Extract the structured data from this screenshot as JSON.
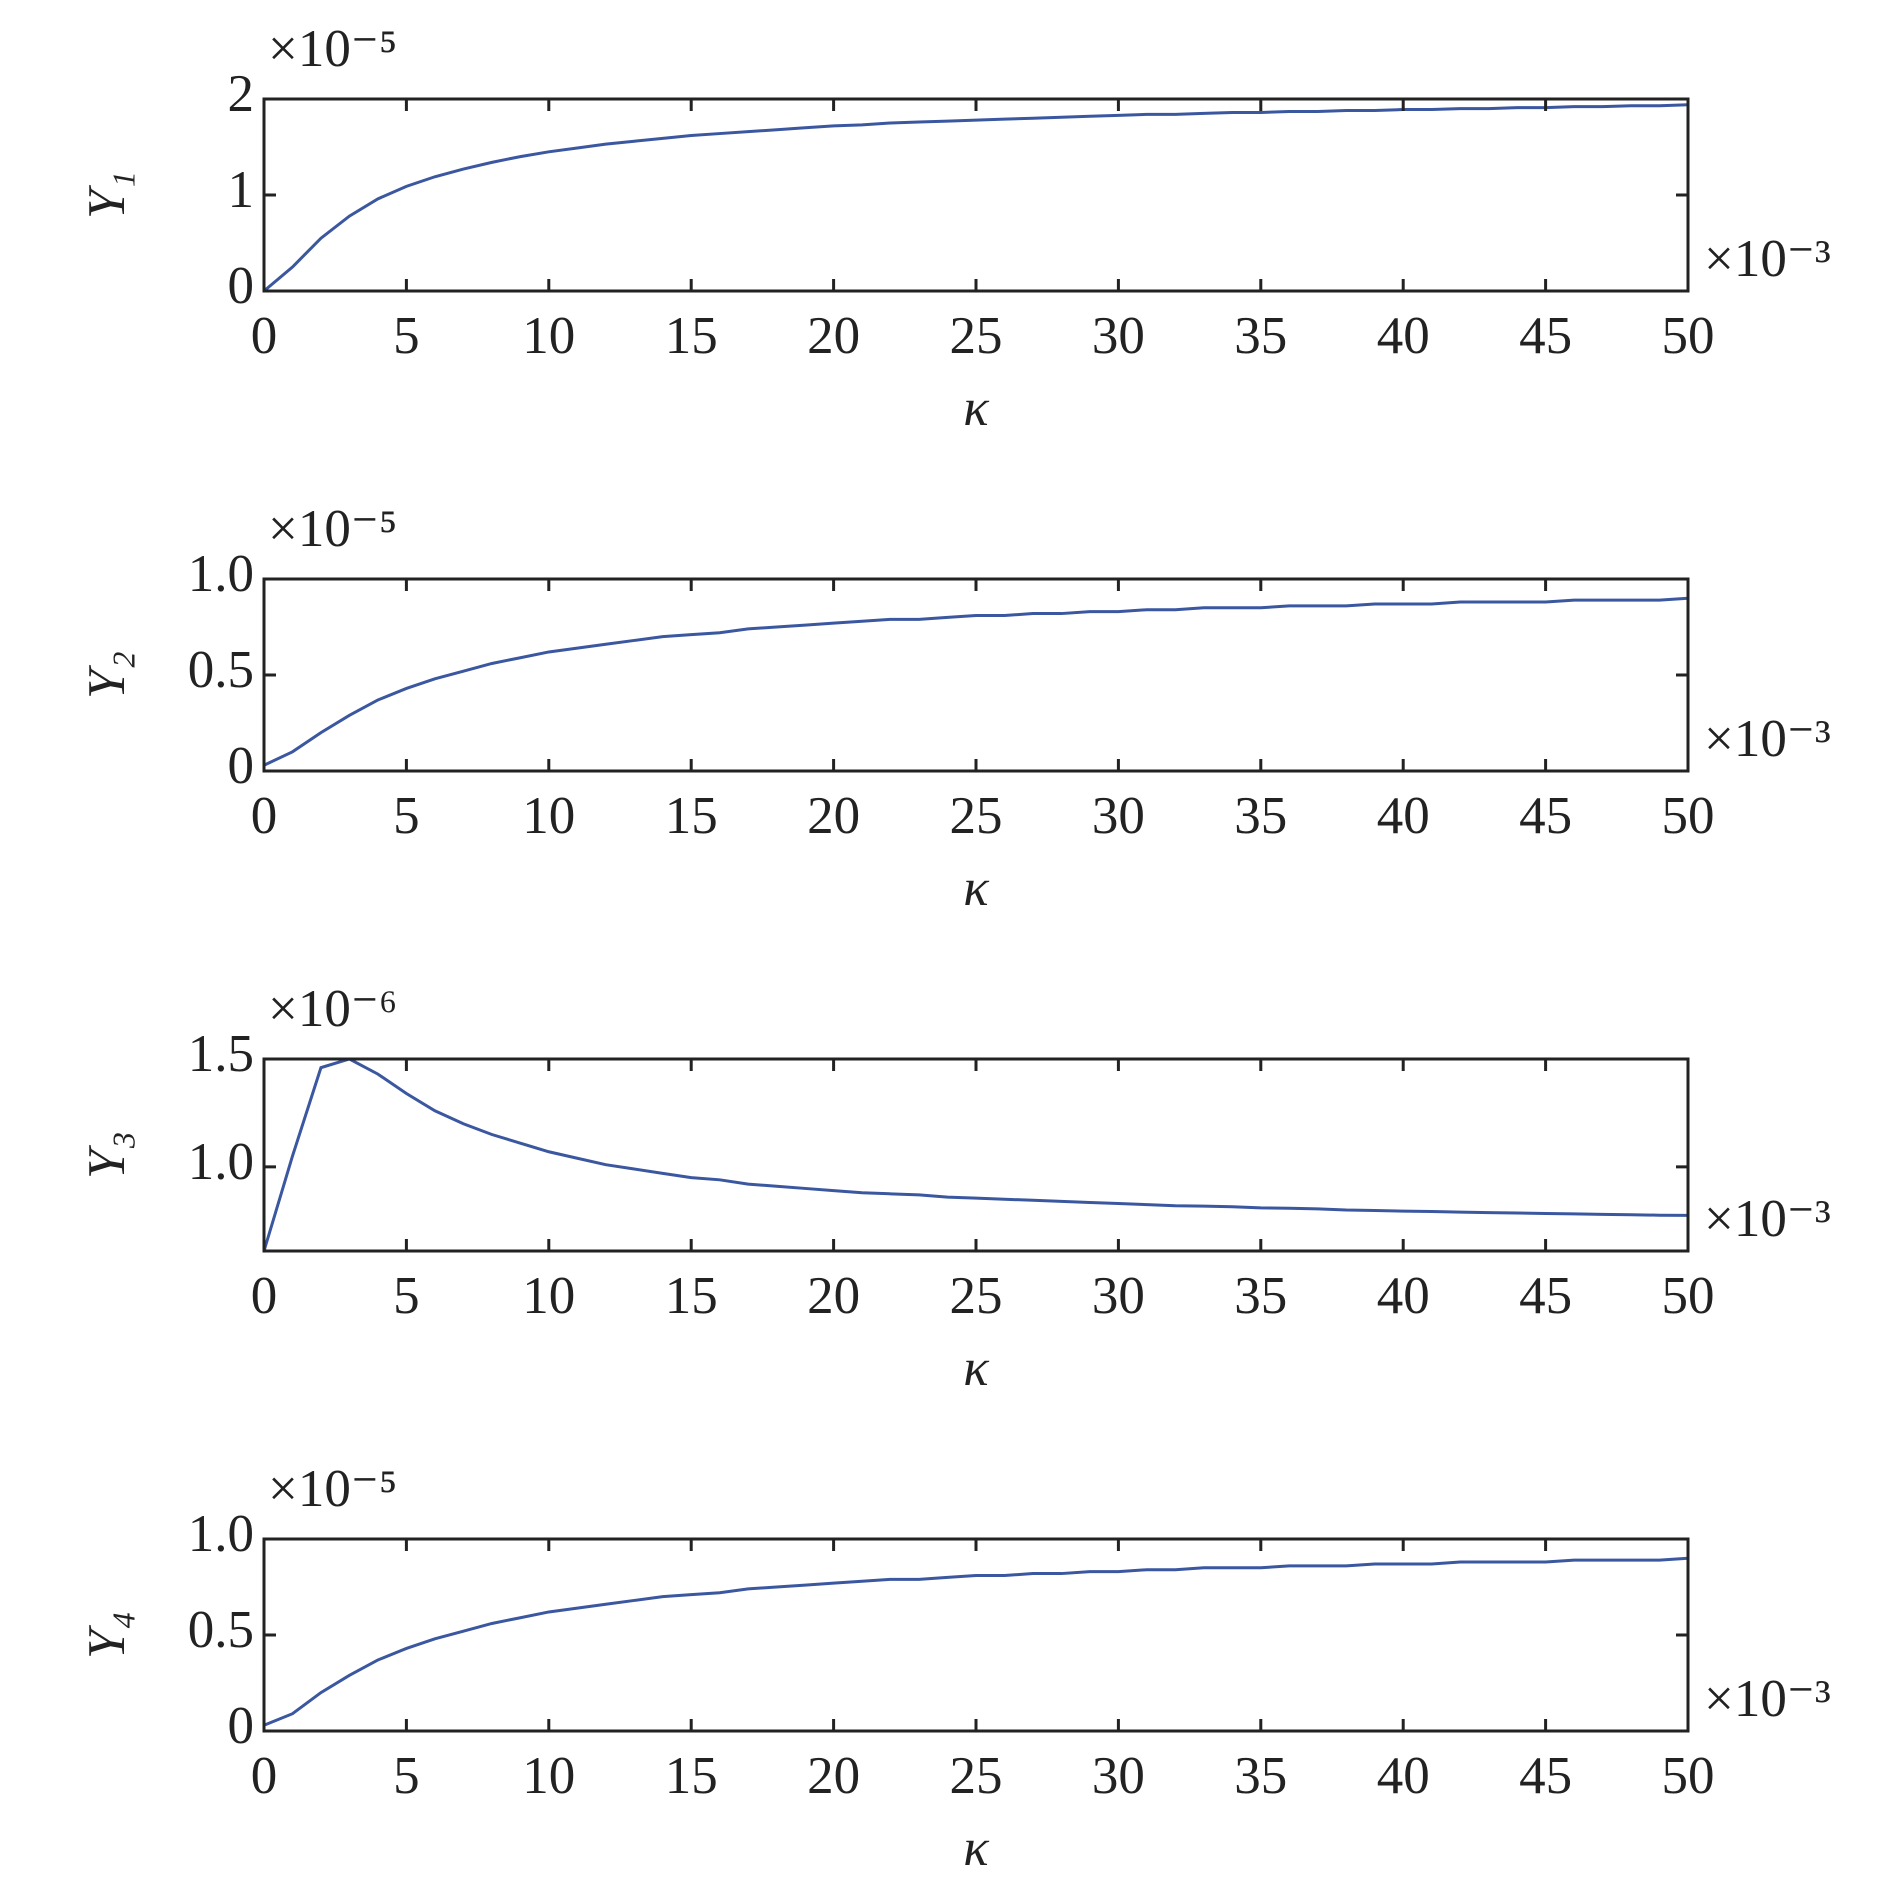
{
  "chart_data": [
    {
      "type": "line",
      "ylabel": "Y₁",
      "xlabel": "κ",
      "y_multiplier": "×10⁻⁵",
      "x_multiplier": "×10⁻³",
      "color": "#3a57a0",
      "x": [
        0,
        1,
        2,
        3,
        4,
        5,
        6,
        7,
        8,
        9,
        10,
        11,
        12,
        13,
        14,
        15,
        16,
        17,
        18,
        19,
        20,
        21,
        22,
        23,
        24,
        25,
        26,
        27,
        28,
        29,
        30,
        31,
        32,
        33,
        34,
        35,
        36,
        37,
        38,
        39,
        40,
        41,
        42,
        43,
        44,
        45,
        46,
        47,
        48,
        49,
        50
      ],
      "values": [
        0,
        0.25,
        0.55,
        0.78,
        0.96,
        1.09,
        1.19,
        1.27,
        1.34,
        1.4,
        1.45,
        1.49,
        1.53,
        1.56,
        1.59,
        1.62,
        1.64,
        1.66,
        1.68,
        1.7,
        1.72,
        1.73,
        1.75,
        1.76,
        1.77,
        1.78,
        1.79,
        1.8,
        1.81,
        1.82,
        1.83,
        1.84,
        1.84,
        1.85,
        1.86,
        1.86,
        1.87,
        1.87,
        1.88,
        1.88,
        1.89,
        1.89,
        1.9,
        1.9,
        1.91,
        1.91,
        1.92,
        1.92,
        1.93,
        1.93,
        1.94
      ],
      "xlim": [
        0,
        50
      ],
      "xticks": [
        0,
        5,
        10,
        15,
        20,
        25,
        30,
        35,
        40,
        45,
        50
      ],
      "ylim": [
        0,
        2
      ],
      "yticks": [
        0,
        1,
        2
      ]
    },
    {
      "type": "line",
      "ylabel": "Y₂",
      "xlabel": "κ",
      "y_multiplier": "×10⁻⁵",
      "x_multiplier": "×10⁻³",
      "color": "#3a57a0",
      "x": [
        0,
        1,
        2,
        3,
        4,
        5,
        6,
        7,
        8,
        9,
        10,
        11,
        12,
        13,
        14,
        15,
        16,
        17,
        18,
        19,
        20,
        21,
        22,
        23,
        24,
        25,
        26,
        27,
        28,
        29,
        30,
        31,
        32,
        33,
        34,
        35,
        36,
        37,
        38,
        39,
        40,
        41,
        42,
        43,
        44,
        45,
        46,
        47,
        48,
        49,
        50
      ],
      "values": [
        0.03,
        0.1,
        0.2,
        0.29,
        0.37,
        0.43,
        0.48,
        0.52,
        0.56,
        0.59,
        0.62,
        0.64,
        0.66,
        0.68,
        0.7,
        0.71,
        0.72,
        0.74,
        0.75,
        0.76,
        0.77,
        0.78,
        0.79,
        0.79,
        0.8,
        0.81,
        0.81,
        0.82,
        0.82,
        0.83,
        0.83,
        0.84,
        0.84,
        0.85,
        0.85,
        0.85,
        0.86,
        0.86,
        0.86,
        0.87,
        0.87,
        0.87,
        0.88,
        0.88,
        0.88,
        0.88,
        0.89,
        0.89,
        0.89,
        0.89,
        0.9
      ],
      "xlim": [
        0,
        50
      ],
      "xticks": [
        0,
        5,
        10,
        15,
        20,
        25,
        30,
        35,
        40,
        45,
        50
      ],
      "ylim": [
        0,
        1
      ],
      "yticks": [
        0,
        0.5,
        {
          "value": 1,
          "label": "1.0"
        }
      ]
    },
    {
      "type": "line",
      "ylabel": "Y₃",
      "xlabel": "κ",
      "y_multiplier": "×10⁻⁶",
      "x_multiplier": "×10⁻³",
      "color": "#3a57a0",
      "x": [
        0,
        1,
        2,
        3,
        4,
        5,
        6,
        7,
        8,
        9,
        10,
        11,
        12,
        13,
        14,
        15,
        16,
        17,
        18,
        19,
        20,
        21,
        22,
        23,
        24,
        25,
        26,
        27,
        28,
        29,
        30,
        31,
        32,
        33,
        34,
        35,
        36,
        37,
        38,
        39,
        40,
        41,
        42,
        43,
        44,
        45,
        46,
        47,
        48,
        49,
        50
      ],
      "values": [
        0.61,
        1.05,
        1.46,
        1.5,
        1.43,
        1.34,
        1.26,
        1.2,
        1.15,
        1.11,
        1.07,
        1.04,
        1.01,
        0.99,
        0.97,
        0.95,
        0.94,
        0.92,
        0.91,
        0.9,
        0.89,
        0.88,
        0.875,
        0.87,
        0.86,
        0.855,
        0.85,
        0.845,
        0.84,
        0.835,
        0.83,
        0.825,
        0.82,
        0.818,
        0.815,
        0.81,
        0.808,
        0.805,
        0.8,
        0.798,
        0.795,
        0.793,
        0.79,
        0.788,
        0.786,
        0.784,
        0.782,
        0.78,
        0.778,
        0.776,
        0.775
      ],
      "xlim": [
        0,
        50
      ],
      "xticks": [
        0,
        5,
        10,
        15,
        20,
        25,
        30,
        35,
        40,
        45,
        50
      ],
      "ylim": [
        0.61,
        1.5
      ],
      "yticks": [
        {
          "value": 1,
          "label": "1.0"
        },
        1.5
      ]
    },
    {
      "type": "line",
      "ylabel": "Y₄",
      "xlabel": "κ",
      "y_multiplier": "×10⁻⁵",
      "x_multiplier": "×10⁻³",
      "color": "#3a57a0",
      "x": [
        0,
        1,
        2,
        3,
        4,
        5,
        6,
        7,
        8,
        9,
        10,
        11,
        12,
        13,
        14,
        15,
        16,
        17,
        18,
        19,
        20,
        21,
        22,
        23,
        24,
        25,
        26,
        27,
        28,
        29,
        30,
        31,
        32,
        33,
        34,
        35,
        36,
        37,
        38,
        39,
        40,
        41,
        42,
        43,
        44,
        45,
        46,
        47,
        48,
        49,
        50
      ],
      "values": [
        0.03,
        0.09,
        0.2,
        0.29,
        0.37,
        0.43,
        0.48,
        0.52,
        0.56,
        0.59,
        0.62,
        0.64,
        0.66,
        0.68,
        0.7,
        0.71,
        0.72,
        0.74,
        0.75,
        0.76,
        0.77,
        0.78,
        0.79,
        0.79,
        0.8,
        0.81,
        0.81,
        0.82,
        0.82,
        0.83,
        0.83,
        0.84,
        0.84,
        0.85,
        0.85,
        0.85,
        0.86,
        0.86,
        0.86,
        0.87,
        0.87,
        0.87,
        0.88,
        0.88,
        0.88,
        0.88,
        0.89,
        0.89,
        0.89,
        0.89,
        0.9
      ],
      "xlim": [
        0,
        50
      ],
      "xticks": [
        0,
        5,
        10,
        15,
        20,
        25,
        30,
        35,
        40,
        45,
        50
      ],
      "ylim": [
        0,
        1
      ],
      "yticks": [
        0,
        0.5,
        {
          "value": 1,
          "label": "1.0"
        }
      ]
    }
  ]
}
